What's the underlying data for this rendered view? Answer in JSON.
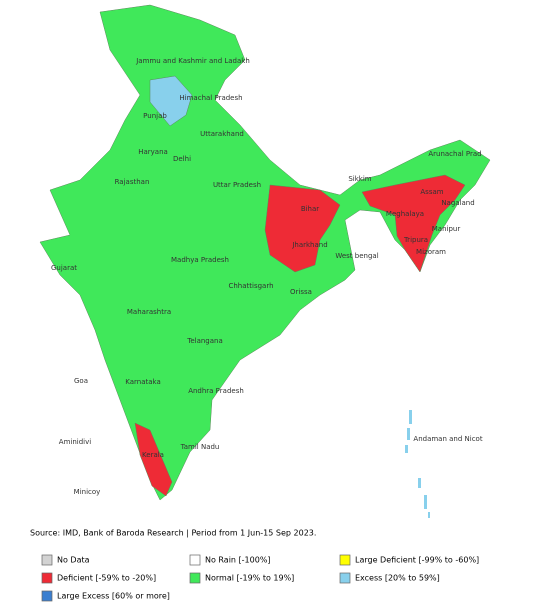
{
  "map": {
    "labels": [
      "Jammu and Kashmir and Ladakh",
      "Himachal Pradesh",
      "Punjab",
      "Uttarakhand",
      "Haryana",
      "Delhi",
      "Rajasthan",
      "Uttar Pradesh",
      "Sikkim",
      "Arunachal Prad",
      "Assam",
      "Nagaland",
      "Bihar",
      "Meghalaya",
      "Manipur",
      "Tripura",
      "Mizoram",
      "Jharkhand",
      "Gujarat",
      "Madhya Pradesh",
      "West bengal",
      "Chhattisgarh",
      "Orissa",
      "Maharashtra",
      "Telangana",
      "Goa",
      "Karnataka",
      "Andhra Pradesh",
      "Aminidivi",
      "Andaman and Nicot",
      "Kerala",
      "Tamil Nadu",
      "Minicoy"
    ]
  },
  "source": "Source: IMD, Bank of Baroda Research | Period from 1 Jun-15 Sep 2023.",
  "legend": [
    {
      "label": "No Data",
      "color": "#d3d3d3"
    },
    {
      "label": "No Rain [-100%]",
      "color": "#ffffff"
    },
    {
      "label": "Large Deficient [-99% to -60%]",
      "color": "#ffff00"
    },
    {
      "label": "Deficient [-59% to -20%]",
      "color": "#ee2b36"
    },
    {
      "label": "Normal [-19% to 19%]",
      "color": "#40e85a"
    },
    {
      "label": "Excess [20% to 59%]",
      "color": "#88d0ec"
    },
    {
      "label": "Large Excess [60% or more]",
      "color": "#3b7fd0"
    }
  ]
}
